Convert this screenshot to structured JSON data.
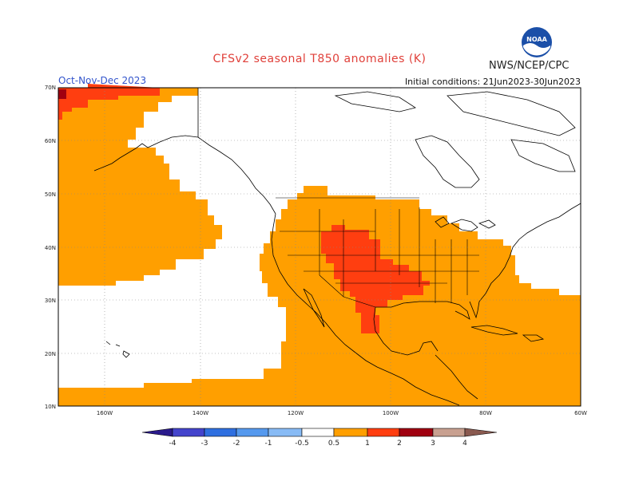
{
  "header": {
    "title": "CFSv2 seasonal T850 anomalies (K)",
    "season": "Oct-Nov-Dec 2023",
    "organization": "NWS/NCEP/CPC",
    "initial_conditions": "Initial conditions: 21Jun2023-30Jun2023",
    "logo_text": "NOAA"
  },
  "axes": {
    "lat_labels": [
      "70N",
      "60N",
      "50N",
      "40N",
      "30N",
      "20N",
      "10N"
    ],
    "lon_labels": [
      "160W",
      "140W",
      "120W",
      "100W",
      "80W",
      "60W"
    ]
  },
  "colorbar": {
    "ticks": [
      "-4",
      "-3",
      "-2",
      "-1",
      "-0.5",
      "0.5",
      "1",
      "2",
      "3",
      "4"
    ],
    "colors": [
      "#2a1a8c",
      "#4444cc",
      "#2f6fe0",
      "#5599ee",
      "#88bbf5",
      "#ffffff",
      "#ff9f00",
      "#ff3e10",
      "#a00010",
      "#c8a090",
      "#8a5a50"
    ]
  },
  "colors": {
    "anomaly_0_5_to_1": "#ff9f00",
    "anomaly_1_to_2": "#ff3e10",
    "anomaly_2_to_3": "#a00010",
    "background": "#ffffff"
  }
}
